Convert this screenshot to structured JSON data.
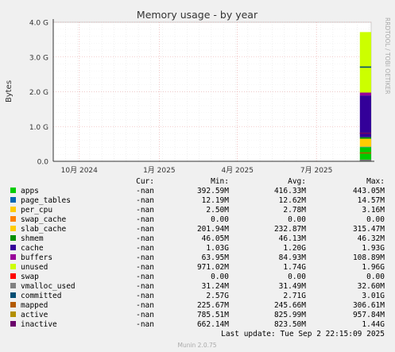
{
  "chart_data": {
    "type": "area",
    "title": "Memory usage - by year",
    "ylabel": "Bytes",
    "watermark": "RRDTOOL / TOBI OETIKER",
    "y_ticks": [
      "0.0",
      "1.0 G",
      "2.0 G",
      "3.0 G",
      "4.0 G"
    ],
    "ylim": [
      0,
      4.0
    ],
    "y_unit": "G bytes",
    "x_ticks": [
      "10月 2024",
      "1月 2025",
      "4月 2025",
      "7月 2025"
    ],
    "x_tick_dates": [
      "2024-10-01",
      "2025-01-01",
      "2025-04-01",
      "2025-07-01"
    ],
    "x_range": [
      "2024-09-01",
      "2025-09-02"
    ],
    "data_start": "2025-08-20",
    "grid": true,
    "legend_headers": [
      "Cur:",
      "Min:",
      "Avg:",
      "Max:"
    ],
    "series": [
      {
        "name": "apps",
        "color": "#00cc00",
        "cur": "-nan",
        "min": "392.59M",
        "avg": "416.33M",
        "max": "443.05M"
      },
      {
        "name": "page_tables",
        "color": "#0066b3",
        "cur": "-nan",
        "min": "12.19M",
        "avg": "12.62M",
        "max": "14.57M"
      },
      {
        "name": "per_cpu",
        "color": "#ffcc00",
        "cur": "-nan",
        "min": "2.50M",
        "avg": "2.78M",
        "max": "3.16M"
      },
      {
        "name": "swap_cache",
        "color": "#ff8000",
        "cur": "-nan",
        "min": "0.00",
        "avg": "0.00",
        "max": "0.00"
      },
      {
        "name": "slab_cache",
        "color": "#ffcc00",
        "cur": "-nan",
        "min": "201.94M",
        "avg": "232.87M",
        "max": "315.47M"
      },
      {
        "name": "shmem",
        "color": "#008f00",
        "cur": "-nan",
        "min": "46.05M",
        "avg": "46.13M",
        "max": "46.32M"
      },
      {
        "name": "cache",
        "color": "#330099",
        "cur": "-nan",
        "min": "1.03G",
        "avg": "1.20G",
        "max": "1.93G"
      },
      {
        "name": "buffers",
        "color": "#990099",
        "cur": "-nan",
        "min": "63.95M",
        "avg": "84.93M",
        "max": "108.89M"
      },
      {
        "name": "unused",
        "color": "#ccff00",
        "cur": "-nan",
        "min": "971.02M",
        "avg": "1.74G",
        "max": "1.96G"
      },
      {
        "name": "swap",
        "color": "#ff0000",
        "cur": "-nan",
        "min": "0.00",
        "avg": "0.00",
        "max": "0.00"
      },
      {
        "name": "vmalloc_used",
        "color": "#808080",
        "cur": "-nan",
        "min": "31.24M",
        "avg": "31.49M",
        "max": "32.60M"
      },
      {
        "name": "committed",
        "color": "#004d73",
        "cur": "-nan",
        "min": "2.57G",
        "avg": "2.71G",
        "max": "3.01G"
      },
      {
        "name": "mapped",
        "color": "#b35a00",
        "cur": "-nan",
        "min": "225.67M",
        "avg": "245.66M",
        "max": "306.61M"
      },
      {
        "name": "active",
        "color": "#b38f00",
        "cur": "-nan",
        "min": "785.51M",
        "avg": "825.99M",
        "max": "957.84M"
      },
      {
        "name": "inactive",
        "color": "#6b006b",
        "cur": "-nan",
        "min": "662.14M",
        "avg": "823.50M",
        "max": "1.44G"
      }
    ],
    "last_update": "Last update: Tue Sep  2 22:15:09 2025",
    "footer": "Munin 2.0.75"
  }
}
